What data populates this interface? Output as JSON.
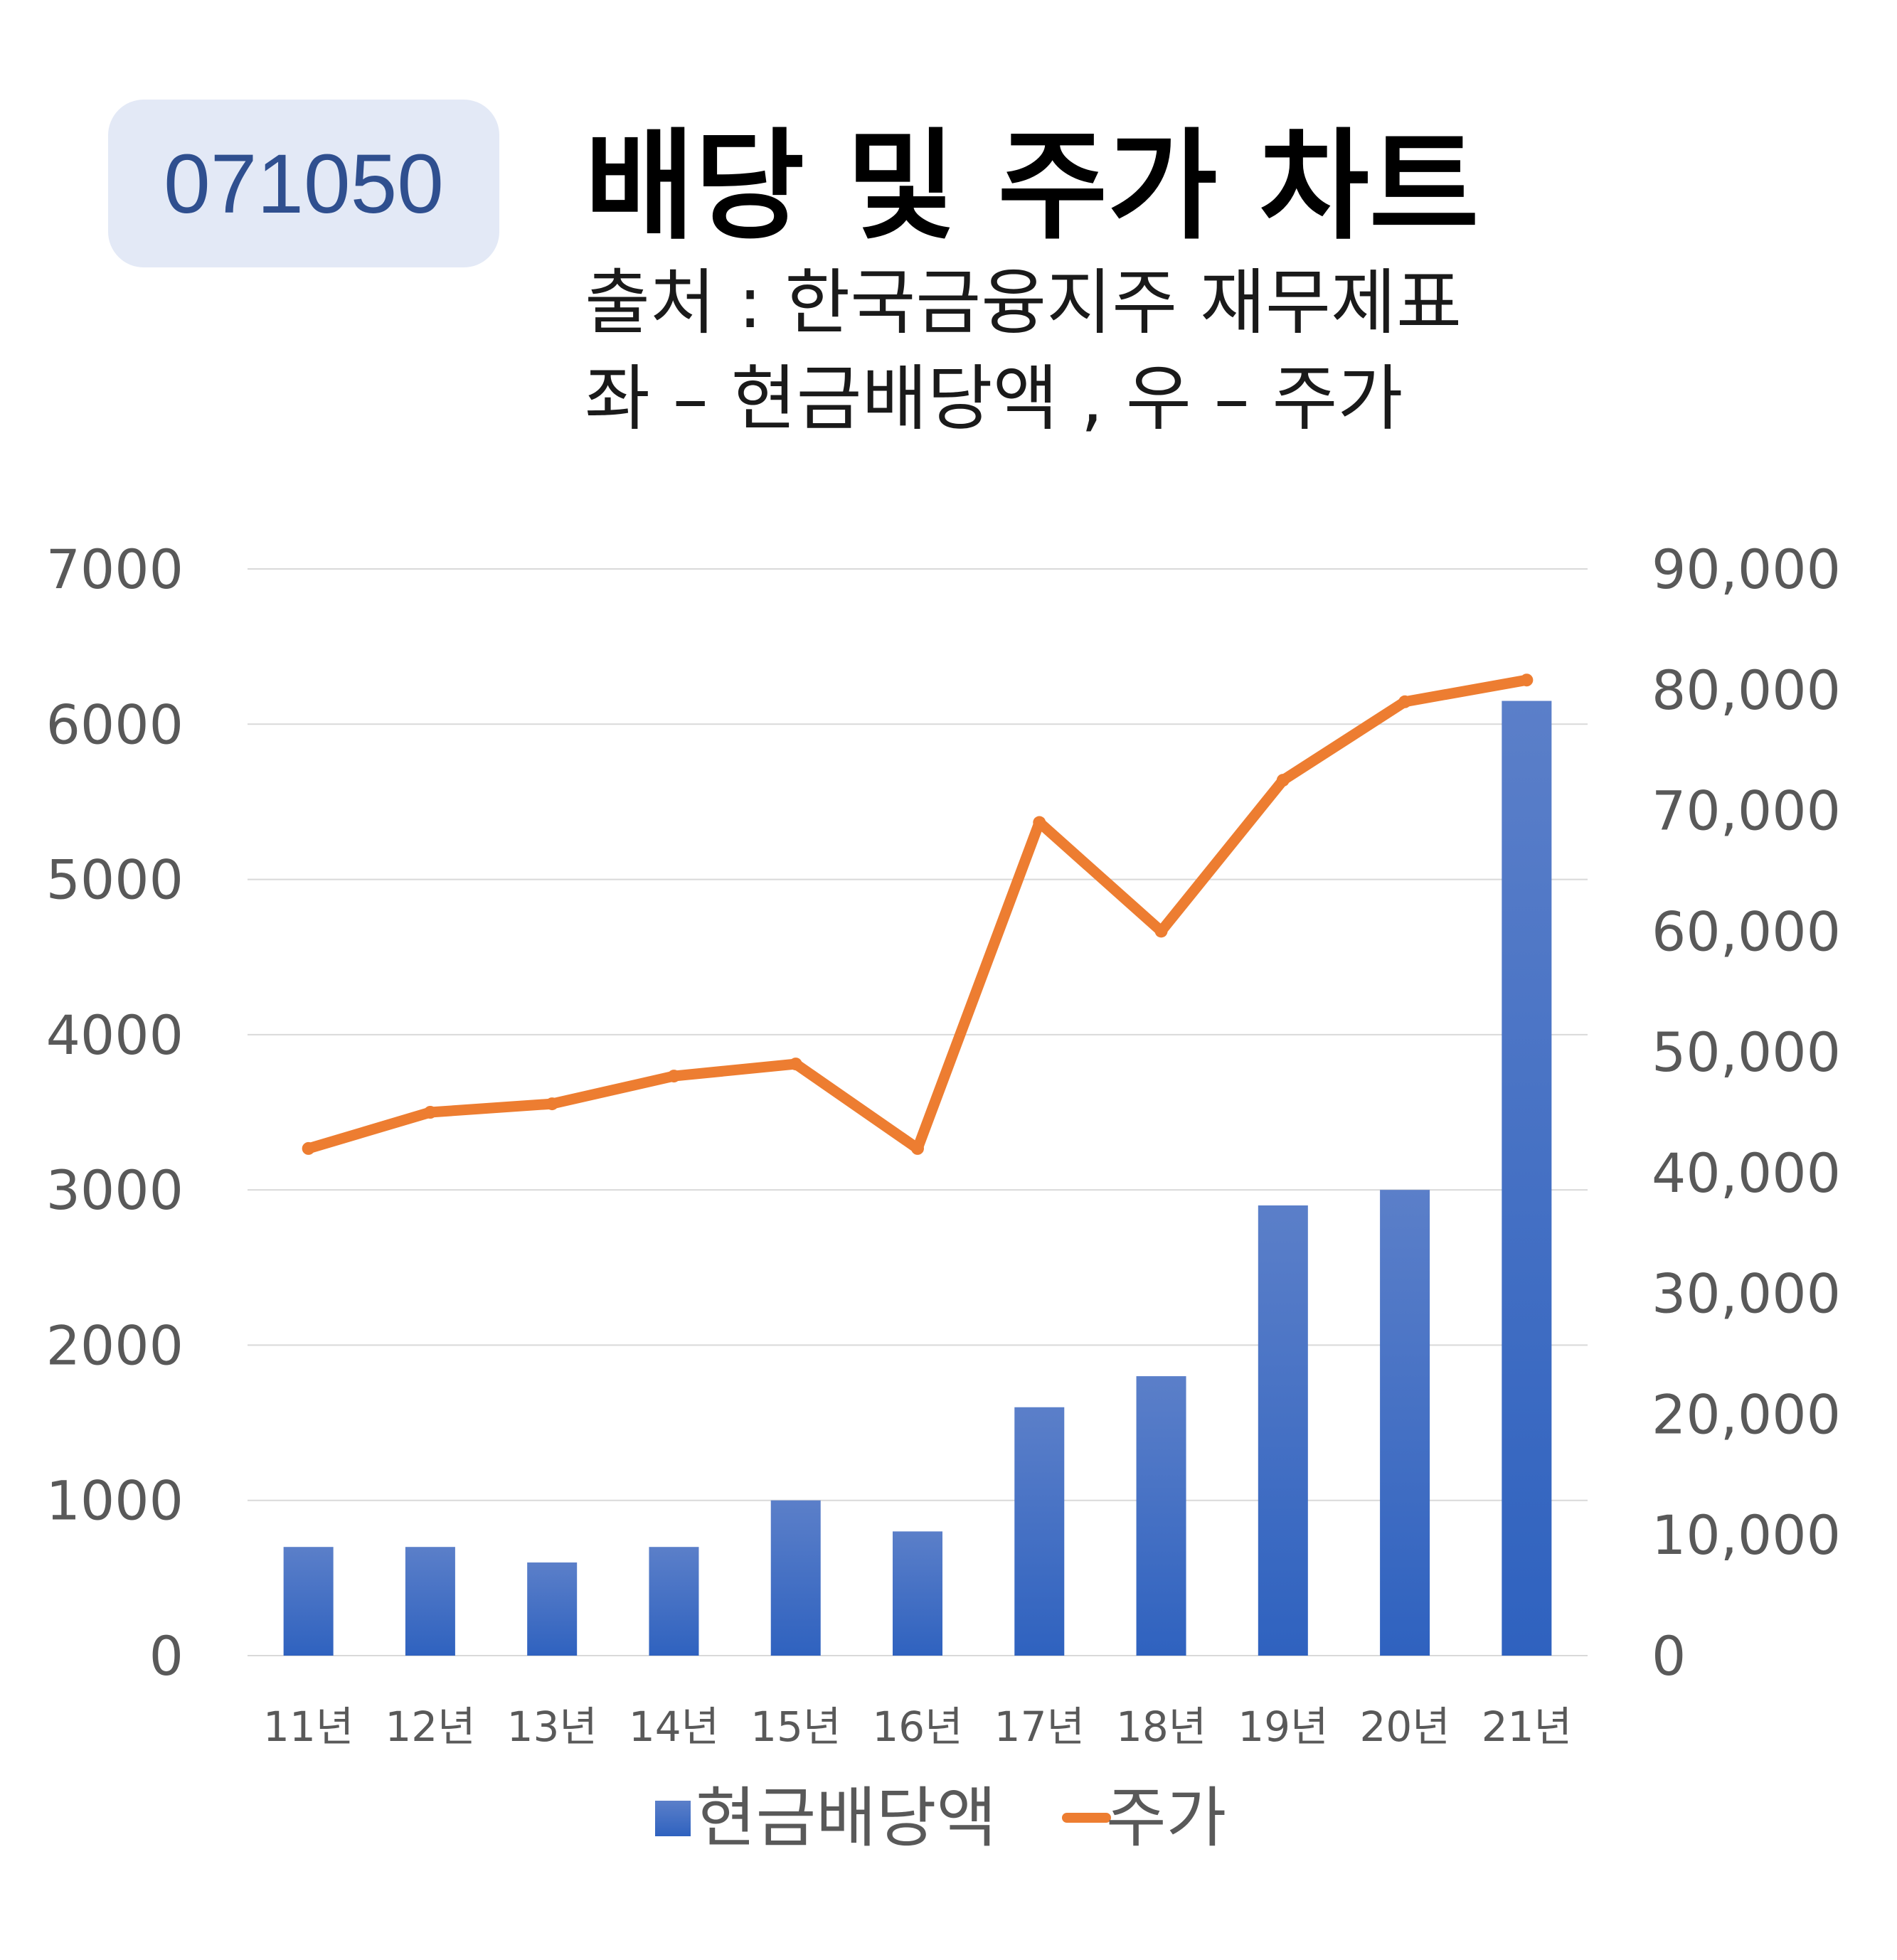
{
  "badge": {
    "code": "071050",
    "background": "#e3e9f6",
    "color": "#2f4f8f"
  },
  "title": "배당 및 주가 차트",
  "subtitle_lines": [
    "출처 : 한국금융지주 재무제표",
    "좌 – 현금배당액  ,  우 – 주가"
  ],
  "chart_data": {
    "type": "bar",
    "title": "배당 및 주가 차트",
    "categories": [
      "11년",
      "12년",
      "13년",
      "14년",
      "15년",
      "16년",
      "17년",
      "18년",
      "19년",
      "20년",
      "21년"
    ],
    "series": [
      {
        "name": "현금배당액",
        "type": "bar",
        "axis": "left",
        "color": "#4472c4",
        "values": [
          700,
          700,
          600,
          700,
          1000,
          800,
          1600,
          1800,
          2900,
          3000,
          6150
        ]
      },
      {
        "name": "주가",
        "type": "line",
        "axis": "right",
        "color": "#ed7d31",
        "values": [
          42000,
          45000,
          45700,
          48000,
          49000,
          42000,
          69000,
          60000,
          72500,
          79000,
          80800
        ]
      }
    ],
    "y_left": {
      "ylim": [
        0,
        7000
      ],
      "ticks": [
        "0",
        "1000",
        "2000",
        "3000",
        "4000",
        "5000",
        "6000",
        "7000"
      ]
    },
    "y_right": {
      "ylim": [
        0,
        90000
      ],
      "ticks": [
        "0",
        "10,000",
        "20,000",
        "30,000",
        "40,000",
        "50,000",
        "60,000",
        "70,000",
        "80,000",
        "90,000"
      ]
    },
    "grid": true,
    "legend": "bottom"
  }
}
